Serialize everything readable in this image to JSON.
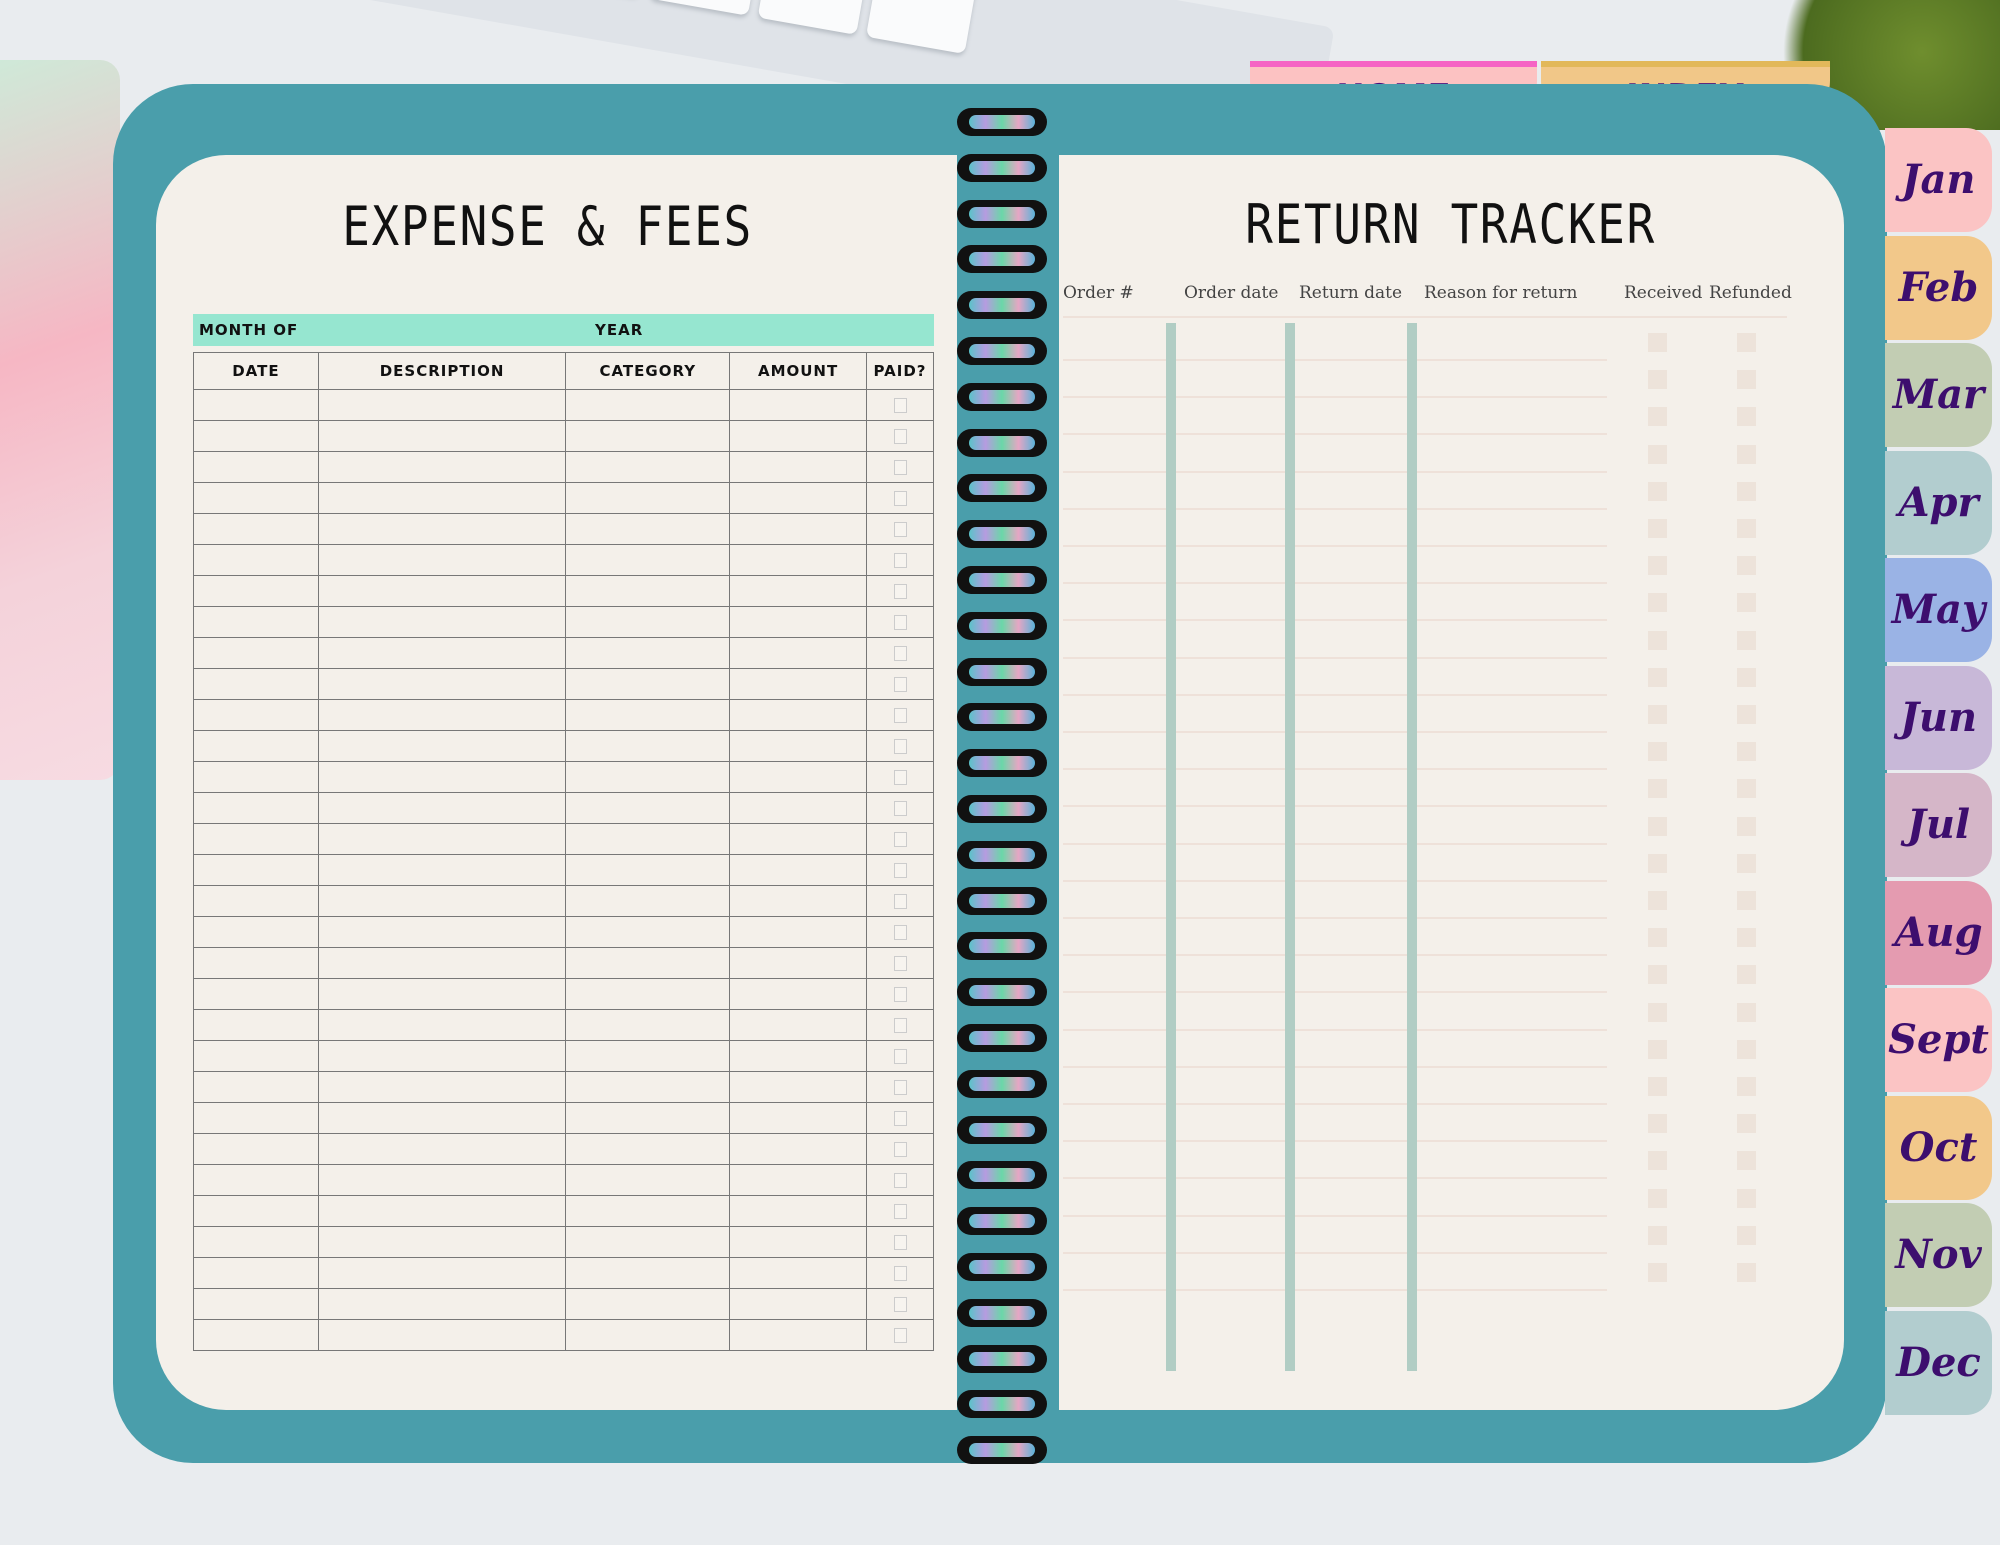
{
  "tabs": {
    "home": "HOME",
    "index": "INDEX"
  },
  "months": [
    {
      "label": "Jan",
      "color": "#fbc4c4"
    },
    {
      "label": "Feb",
      "color": "#f2c88a"
    },
    {
      "label": "Mar",
      "color": "#c2cdb3"
    },
    {
      "label": "Apr",
      "color": "#b2cdcf"
    },
    {
      "label": "May",
      "color": "#9ab3e5"
    },
    {
      "label": "Jun",
      "color": "#c8b8d8"
    },
    {
      "label": "Jul",
      "color": "#d5b6c8"
    },
    {
      "label": "Aug",
      "color": "#e49bb0"
    },
    {
      "label": "Sept",
      "color": "#fbc4c4"
    },
    {
      "label": "Oct",
      "color": "#f2c88a"
    },
    {
      "label": "Nov",
      "color": "#c2cdb3"
    },
    {
      "label": "Dec",
      "color": "#b2cdcf"
    }
  ],
  "expense": {
    "title": "EXPENSE & FEES",
    "month_of": "MONTH OF",
    "year": "YEAR",
    "columns": [
      "DATE",
      "DESCRIPTION",
      "CATEGORY",
      "AMOUNT",
      "PAID?"
    ]
  },
  "returns": {
    "title": "RETURN TRACKER",
    "columns": [
      "Order #",
      "Order date",
      "Return date",
      "Reason for return",
      "Received",
      "Refunded"
    ]
  },
  "colors": {
    "cover": "#4a9eab",
    "page": "#f4f0ea",
    "month_bar": "#96e6d0",
    "tab_text": "#47107a"
  }
}
